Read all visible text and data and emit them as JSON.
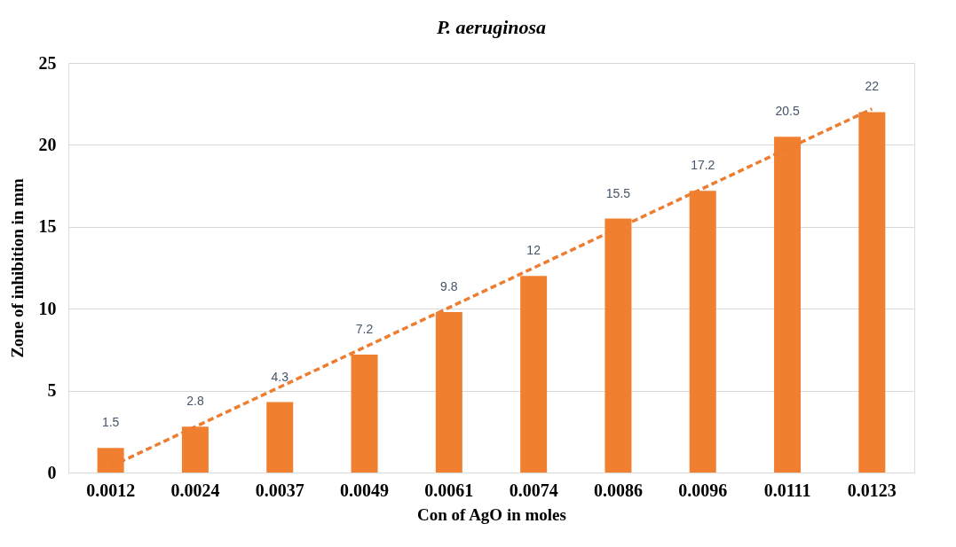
{
  "chart_data": {
    "type": "bar",
    "title": "P. aeruginosa",
    "xlabel": "Con of AgO in moles",
    "ylabel": "Zone of inhibition in mm",
    "categories": [
      "0.0012",
      "0.0024",
      "0.0037",
      "0.0049",
      "0.0061",
      "0.0074",
      "0.0086",
      "0.0096",
      "0.0111",
      "0.0123"
    ],
    "series": [
      {
        "color": "#f0802f",
        "values": [
          1.5,
          2.8,
          4.3,
          7.2,
          9.8,
          12,
          15.5,
          17.2,
          20.5,
          22
        ],
        "value_labels": [
          "1.5",
          "2.8",
          "4.3",
          "7.2",
          "9.8",
          "12",
          "15.5",
          "17.2",
          "20.5",
          "22"
        ]
      },
      {
        "type": "line",
        "color": "#ed7d31",
        "line_style": "dashed",
        "marker": "none",
        "x": [
          "0.0012",
          "0.0123"
        ],
        "values": [
          0.37,
          22.19
        ]
      }
    ],
    "ylim": [
      0,
      25
    ],
    "yticks": [
      0,
      5,
      10,
      15,
      20,
      25
    ],
    "grid": "y"
  }
}
